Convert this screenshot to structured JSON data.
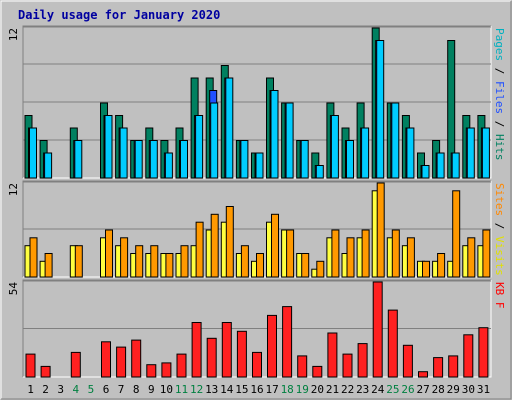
{
  "chart_data": {
    "type": "bar",
    "title": "Daily usage for January 2020",
    "days": [
      "1",
      "2",
      "3",
      "4",
      "5",
      "6",
      "7",
      "8",
      "9",
      "10",
      "11",
      "12",
      "13",
      "14",
      "15",
      "16",
      "17",
      "18",
      "19",
      "20",
      "21",
      "22",
      "23",
      "24",
      "25",
      "26",
      "27",
      "28",
      "29",
      "30",
      "31"
    ],
    "weekend_days": [
      4,
      5,
      11,
      12,
      18,
      19,
      25,
      26
    ],
    "panels": [
      {
        "id": "hits",
        "ymax_label": "12",
        "ylim": [
          0,
          12
        ],
        "legend": [
          {
            "text": "Pages",
            "color": "#00b0c0"
          },
          {
            "text": " / ",
            "color": "#000000"
          },
          {
            "text": "Files",
            "color": "#2050ff"
          },
          {
            "text": " / ",
            "color": "#000000"
          },
          {
            "text": "Hits",
            "color": "#008060"
          }
        ],
        "series": [
          {
            "name": "Hits",
            "color": "#008060",
            "values": [
              5,
              3,
              0,
              4,
              0,
              6,
              5,
              3,
              4,
              3,
              4,
              8,
              8,
              9,
              3,
              2,
              8,
              6,
              3,
              2,
              6,
              4,
              6,
              12,
              6,
              5,
              2,
              3,
              11,
              5,
              5
            ]
          },
          {
            "name": "Files",
            "color": "#2050ff",
            "values": [
              4,
              2,
              0,
              3,
              0,
              5,
              4,
              3,
              3,
              2,
              3,
              5,
              7,
              8,
              3,
              2,
              7,
              6,
              3,
              1,
              5,
              3,
              4,
              11,
              6,
              4,
              1,
              2,
              2,
              4,
              4
            ]
          },
          {
            "name": "Pages",
            "color": "#00ccff",
            "values": [
              4,
              2,
              0,
              3,
              0,
              5,
              4,
              3,
              3,
              2,
              3,
              5,
              6,
              8,
              3,
              2,
              7,
              6,
              3,
              1,
              5,
              3,
              4,
              11,
              6,
              4,
              1,
              2,
              2,
              4,
              4
            ]
          }
        ]
      },
      {
        "id": "visits",
        "ymax_label": "12",
        "ylim": [
          0,
          12
        ],
        "legend": [
          {
            "text": "Sites",
            "color": "#ff8800"
          },
          {
            "text": " / ",
            "color": "#000000"
          },
          {
            "text": "Visits",
            "color": "#e0e000"
          }
        ],
        "series": [
          {
            "name": "Visits",
            "color": "#ffff40",
            "values": [
              4,
              2,
              0,
              4,
              0,
              5,
              4,
              3,
              3,
              3,
              3,
              4,
              6,
              7,
              3,
              2,
              7,
              6,
              3,
              1,
              5,
              3,
              5,
              11,
              5,
              4,
              2,
              2,
              2,
              4,
              4
            ]
          },
          {
            "name": "Sites",
            "color": "#ff9900",
            "values": [
              5,
              3,
              0,
              4,
              0,
              6,
              5,
              4,
              4,
              3,
              4,
              7,
              8,
              9,
              4,
              3,
              8,
              6,
              3,
              2,
              6,
              5,
              6,
              12,
              6,
              5,
              2,
              3,
              11,
              5,
              6
            ]
          }
        ]
      },
      {
        "id": "kb",
        "ymax_label": "54",
        "ylim": [
          0,
          54
        ],
        "legend": [
          {
            "text": "KB F",
            "color": "#ff0000"
          }
        ],
        "series": [
          {
            "name": "KB F",
            "color": "#ff2020",
            "values": [
              13,
              6,
              0,
              14,
              0,
              20,
              17,
              21,
              7,
              8,
              13,
              31,
              22,
              31,
              26,
              14,
              35,
              40,
              12,
              6,
              25,
              13,
              19,
              54,
              38,
              18,
              3,
              11,
              12,
              24,
              28
            ]
          }
        ]
      }
    ]
  }
}
